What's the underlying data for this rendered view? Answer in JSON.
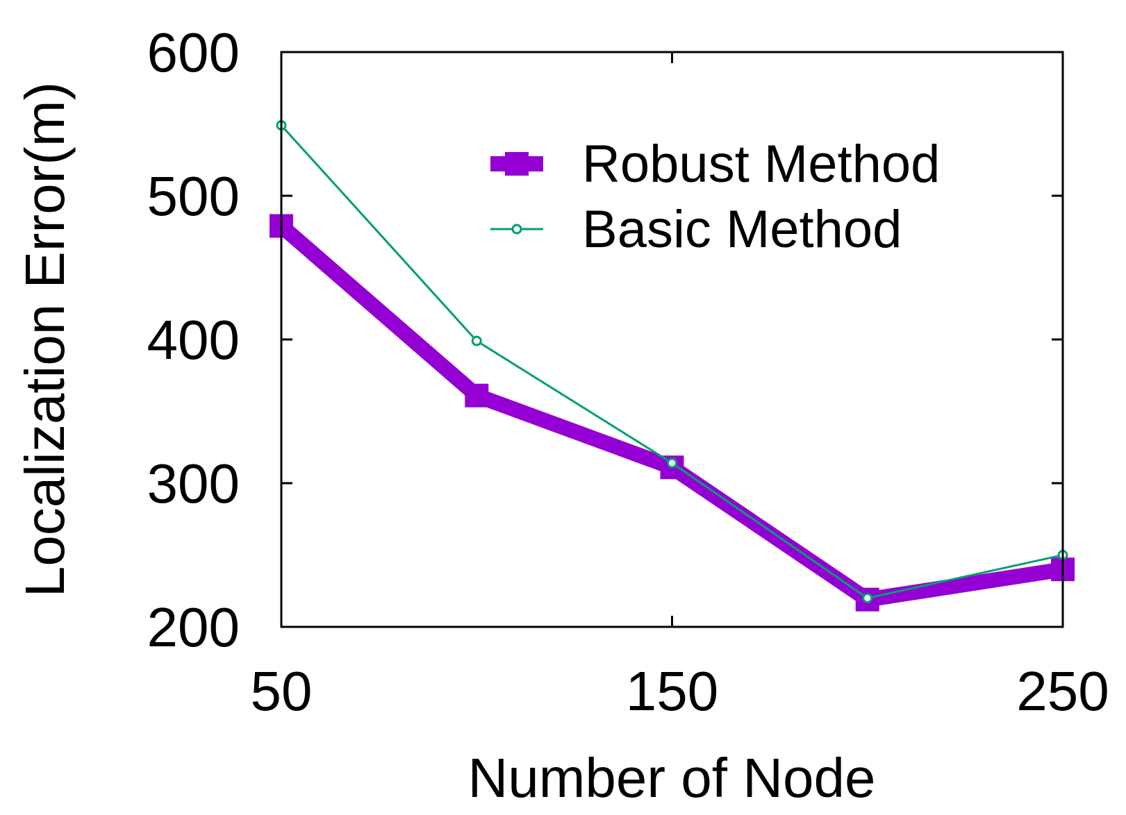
{
  "chart_data": {
    "type": "line",
    "title": "",
    "xlabel": "Number of Node",
    "ylabel": "Localization Error(m)",
    "x": [
      50,
      100,
      150,
      200,
      250
    ],
    "xticks": [
      50,
      150,
      250
    ],
    "yticks": [
      200,
      300,
      400,
      500,
      600
    ],
    "xlim": [
      50,
      250
    ],
    "ylim": [
      200,
      600
    ],
    "grid": false,
    "legend_position": "top-right",
    "series": [
      {
        "name": "Robust Method",
        "values": [
          479,
          361,
          311,
          219,
          240
        ],
        "color": "#9400D3",
        "marker": "square"
      },
      {
        "name": "Basic Method",
        "values": [
          549,
          399,
          314,
          220,
          250
        ],
        "color": "#009E73",
        "marker": "circle"
      }
    ]
  }
}
